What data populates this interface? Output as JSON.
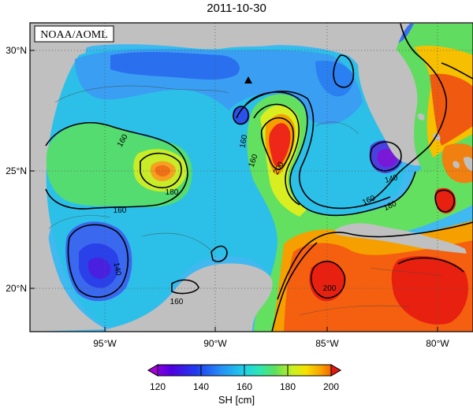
{
  "title": "2011-10-30",
  "credit": "NOAA/AOML",
  "lat_labels": [
    "30°N",
    "25°N",
    "20°N"
  ],
  "lon_labels": [
    "95°W",
    "90°W",
    "85°W",
    "80°W"
  ],
  "contour_labels": {
    "c160_west": "160",
    "c180_center": "180",
    "c160_southwest": "160",
    "c140_sw": "140",
    "c160_south": "160",
    "c160_loop_a": "160",
    "c160_loop_b": "160",
    "c200_loop": "200",
    "c140_fl": "140",
    "c160_strait": "160",
    "c180_strait": "180",
    "c200_carib": "200"
  },
  "colorbar": {
    "label": "SH [cm]",
    "ticks": [
      "120",
      "140",
      "160",
      "180",
      "200"
    ],
    "colors": [
      "#a800d8",
      "#5000e0",
      "#1f3cf0",
      "#2590f5",
      "#1fd0e8",
      "#2ee6b0",
      "#5fe05a",
      "#c8f020",
      "#f6e200",
      "#f8a000",
      "#f55a00",
      "#e01a10"
    ]
  },
  "marker": "triangle"
}
